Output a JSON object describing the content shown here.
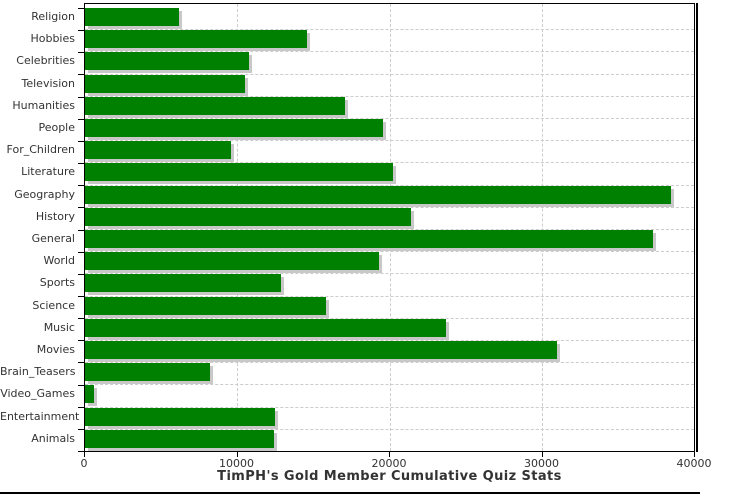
{
  "chart_data": {
    "type": "bar",
    "orientation": "horizontal",
    "title": "TimPH's Gold Member Cumulative Quiz Stats",
    "categories": [
      "Religion",
      "Hobbies",
      "Celebrities",
      "Television",
      "Humanities",
      "People",
      "For_Children",
      "Literature",
      "Geography",
      "History",
      "General",
      "World",
      "Sports",
      "Science",
      "Music",
      "Movies",
      "Brain_Teasers",
      "Video_Games",
      "Entertainment",
      "Animals"
    ],
    "values": [
      6200,
      14600,
      10800,
      10500,
      17100,
      19600,
      9600,
      20200,
      38500,
      21400,
      37300,
      19300,
      12900,
      15800,
      23700,
      31000,
      8200,
      600,
      12500,
      12400
    ],
    "xlabel": "",
    "ylabel": "",
    "xlim": [
      0,
      40000
    ],
    "x_ticks": [
      0,
      10000,
      20000,
      30000,
      40000
    ],
    "x_tick_labels": [
      "0",
      "10000",
      "20000",
      "30000",
      "40000"
    ],
    "grid": true,
    "legend_position": "none",
    "bar_color": "#008000",
    "bar_shadow_color": "#c8c8c8",
    "grid_color": "#cccccc",
    "axis_color": "#000000",
    "text_color": "#333333",
    "background_color": "#ffffff"
  }
}
